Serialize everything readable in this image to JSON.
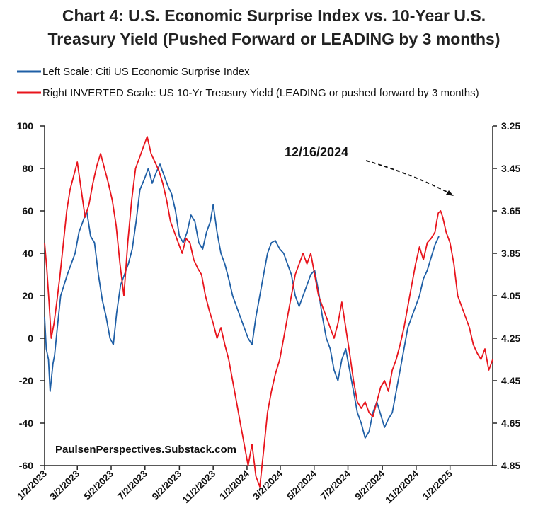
{
  "chart_data": {
    "type": "line",
    "title_line1": "Chart 4: U.S. Economic Surprise Index vs. 10-Year U.S.",
    "title_line2": "Treasury Yield (Pushed Forward or LEADING by 3 months)",
    "legend": [
      {
        "label": "Left Scale: Citi US Economic Surprise Index",
        "color": "#1f5fa6"
      },
      {
        "label": "Right INVERTED Scale: US 10-Yr Treasury Yield (LEADING or pushed forward by 3 months)",
        "color": "#e8141c"
      }
    ],
    "x_axis": {
      "range": [
        "2023-01-02",
        "2025-03-20"
      ],
      "tick_labels": [
        "1/2/2023",
        "3/2/2023",
        "5/2/2023",
        "7/2/2023",
        "9/2/2023",
        "11/2/2023",
        "1/2/2024",
        "3/2/2024",
        "5/2/2024",
        "7/2/2024",
        "9/2/2024",
        "11/2/2024",
        "1/2/2025"
      ]
    },
    "y_left": {
      "range": [
        -60,
        100
      ],
      "ticks": [
        100,
        80,
        60,
        40,
        20,
        0,
        -20,
        -40,
        -60
      ],
      "tick_labels": [
        "100",
        "80",
        "60",
        "40",
        "20",
        "0",
        "-20",
        "-40",
        "-60"
      ]
    },
    "y_right": {
      "inverted": true,
      "range": [
        3.25,
        4.85
      ],
      "ticks": [
        3.25,
        3.45,
        3.65,
        3.85,
        4.05,
        4.25,
        4.45,
        4.65,
        4.85
      ],
      "tick_labels": [
        "3.25",
        "3.45",
        "3.65",
        "3.85",
        "4.05",
        "4.25",
        "4.45",
        "4.65",
        "4.85"
      ]
    },
    "series": [
      {
        "name": "Left Scale: Citi US Economic Surprise Index",
        "axis": "left",
        "color": "#1f5fa6",
        "points": [
          [
            "2023-01-02",
            10
          ],
          [
            "2023-01-05",
            -5
          ],
          [
            "2023-01-09",
            -10
          ],
          [
            "2023-01-12",
            -25
          ],
          [
            "2023-01-17",
            -12
          ],
          [
            "2023-01-20",
            -8
          ],
          [
            "2023-01-25",
            5
          ],
          [
            "2023-01-31",
            20
          ],
          [
            "2023-02-06",
            25
          ],
          [
            "2023-02-12",
            30
          ],
          [
            "2023-02-19",
            35
          ],
          [
            "2023-02-26",
            40
          ],
          [
            "2023-03-05",
            50
          ],
          [
            "2023-03-12",
            55
          ],
          [
            "2023-03-19",
            60
          ],
          [
            "2023-03-26",
            48
          ],
          [
            "2023-04-02",
            45
          ],
          [
            "2023-04-09",
            30
          ],
          [
            "2023-04-16",
            18
          ],
          [
            "2023-04-23",
            10
          ],
          [
            "2023-04-30",
            0
          ],
          [
            "2023-05-06",
            -3
          ],
          [
            "2023-05-12",
            12
          ],
          [
            "2023-05-19",
            25
          ],
          [
            "2023-05-26",
            30
          ],
          [
            "2023-06-02",
            35
          ],
          [
            "2023-06-09",
            42
          ],
          [
            "2023-06-16",
            55
          ],
          [
            "2023-06-23",
            70
          ],
          [
            "2023-07-01",
            75
          ],
          [
            "2023-07-08",
            80
          ],
          [
            "2023-07-15",
            73
          ],
          [
            "2023-07-22",
            78
          ],
          [
            "2023-07-29",
            82
          ],
          [
            "2023-08-05",
            77
          ],
          [
            "2023-08-12",
            72
          ],
          [
            "2023-08-19",
            68
          ],
          [
            "2023-08-26",
            60
          ],
          [
            "2023-09-02",
            48
          ],
          [
            "2023-09-09",
            45
          ],
          [
            "2023-09-16",
            50
          ],
          [
            "2023-09-23",
            58
          ],
          [
            "2023-09-30",
            55
          ],
          [
            "2023-10-07",
            45
          ],
          [
            "2023-10-14",
            42
          ],
          [
            "2023-10-21",
            50
          ],
          [
            "2023-10-28",
            55
          ],
          [
            "2023-11-02",
            63
          ],
          [
            "2023-11-09",
            50
          ],
          [
            "2023-11-16",
            40
          ],
          [
            "2023-11-23",
            35
          ],
          [
            "2023-11-30",
            28
          ],
          [
            "2023-12-07",
            20
          ],
          [
            "2023-12-14",
            15
          ],
          [
            "2023-12-21",
            10
          ],
          [
            "2023-12-28",
            5
          ],
          [
            "2024-01-04",
            0
          ],
          [
            "2024-01-11",
            -3
          ],
          [
            "2024-01-18",
            10
          ],
          [
            "2024-01-25",
            20
          ],
          [
            "2024-02-01",
            30
          ],
          [
            "2024-02-08",
            40
          ],
          [
            "2024-02-15",
            45
          ],
          [
            "2024-02-22",
            46
          ],
          [
            "2024-03-01",
            42
          ],
          [
            "2024-03-08",
            40
          ],
          [
            "2024-03-15",
            35
          ],
          [
            "2024-03-22",
            30
          ],
          [
            "2024-03-29",
            20
          ],
          [
            "2024-04-05",
            15
          ],
          [
            "2024-04-12",
            20
          ],
          [
            "2024-04-19",
            25
          ],
          [
            "2024-04-26",
            30
          ],
          [
            "2024-05-03",
            32
          ],
          [
            "2024-05-10",
            22
          ],
          [
            "2024-05-17",
            10
          ],
          [
            "2024-05-24",
            0
          ],
          [
            "2024-05-31",
            -5
          ],
          [
            "2024-06-07",
            -15
          ],
          [
            "2024-06-14",
            -20
          ],
          [
            "2024-06-21",
            -10
          ],
          [
            "2024-06-28",
            -5
          ],
          [
            "2024-07-05",
            -15
          ],
          [
            "2024-07-12",
            -25
          ],
          [
            "2024-07-19",
            -35
          ],
          [
            "2024-07-26",
            -40
          ],
          [
            "2024-08-02",
            -47
          ],
          [
            "2024-08-09",
            -44
          ],
          [
            "2024-08-16",
            -35
          ],
          [
            "2024-08-23",
            -30
          ],
          [
            "2024-08-30",
            -36
          ],
          [
            "2024-09-06",
            -42
          ],
          [
            "2024-09-13",
            -38
          ],
          [
            "2024-09-20",
            -35
          ],
          [
            "2024-09-27",
            -25
          ],
          [
            "2024-10-04",
            -15
          ],
          [
            "2024-10-11",
            -5
          ],
          [
            "2024-10-18",
            5
          ],
          [
            "2024-10-25",
            10
          ],
          [
            "2024-11-01",
            15
          ],
          [
            "2024-11-08",
            20
          ],
          [
            "2024-11-15",
            28
          ],
          [
            "2024-11-22",
            32
          ],
          [
            "2024-11-29",
            38
          ],
          [
            "2024-12-06",
            44
          ],
          [
            "2024-12-13",
            48
          ]
        ]
      },
      {
        "name": "Right INVERTED Scale: US 10-Yr Treasury Yield (LEADING or pushed forward by 3 months)",
        "axis": "right",
        "color": "#e8141c",
        "points": [
          [
            "2023-01-02",
            3.8
          ],
          [
            "2023-01-06",
            3.92
          ],
          [
            "2023-01-10",
            4.08
          ],
          [
            "2023-01-14",
            4.25
          ],
          [
            "2023-01-19",
            4.18
          ],
          [
            "2023-01-24",
            4.08
          ],
          [
            "2023-01-30",
            3.95
          ],
          [
            "2023-02-05",
            3.8
          ],
          [
            "2023-02-11",
            3.65
          ],
          [
            "2023-02-17",
            3.55
          ],
          [
            "2023-02-24",
            3.48
          ],
          [
            "2023-03-02",
            3.42
          ],
          [
            "2023-03-09",
            3.55
          ],
          [
            "2023-03-16",
            3.68
          ],
          [
            "2023-03-23",
            3.62
          ],
          [
            "2023-03-30",
            3.52
          ],
          [
            "2023-04-06",
            3.44
          ],
          [
            "2023-04-13",
            3.38
          ],
          [
            "2023-04-20",
            3.45
          ],
          [
            "2023-04-27",
            3.52
          ],
          [
            "2023-05-04",
            3.6
          ],
          [
            "2023-05-11",
            3.72
          ],
          [
            "2023-05-18",
            3.9
          ],
          [
            "2023-05-25",
            4.05
          ],
          [
            "2023-06-01",
            3.8
          ],
          [
            "2023-06-08",
            3.6
          ],
          [
            "2023-06-15",
            3.45
          ],
          [
            "2023-06-22",
            3.4
          ],
          [
            "2023-06-29",
            3.35
          ],
          [
            "2023-07-06",
            3.3
          ],
          [
            "2023-07-13",
            3.38
          ],
          [
            "2023-07-20",
            3.42
          ],
          [
            "2023-07-27",
            3.46
          ],
          [
            "2023-08-03",
            3.52
          ],
          [
            "2023-08-10",
            3.6
          ],
          [
            "2023-08-17",
            3.7
          ],
          [
            "2023-08-24",
            3.75
          ],
          [
            "2023-08-31",
            3.8
          ],
          [
            "2023-09-07",
            3.85
          ],
          [
            "2023-09-14",
            3.78
          ],
          [
            "2023-09-21",
            3.8
          ],
          [
            "2023-09-28",
            3.88
          ],
          [
            "2023-10-05",
            3.92
          ],
          [
            "2023-10-12",
            3.95
          ],
          [
            "2023-10-19",
            4.05
          ],
          [
            "2023-10-26",
            4.12
          ],
          [
            "2023-11-02",
            4.18
          ],
          [
            "2023-11-09",
            4.25
          ],
          [
            "2023-11-16",
            4.2
          ],
          [
            "2023-11-23",
            4.28
          ],
          [
            "2023-11-30",
            4.35
          ],
          [
            "2023-12-07",
            4.45
          ],
          [
            "2023-12-14",
            4.55
          ],
          [
            "2023-12-21",
            4.65
          ],
          [
            "2023-12-28",
            4.75
          ],
          [
            "2024-01-04",
            4.85
          ],
          [
            "2024-01-11",
            4.75
          ],
          [
            "2024-01-18",
            4.9
          ],
          [
            "2024-01-25",
            4.95
          ],
          [
            "2024-02-01",
            4.78
          ],
          [
            "2024-02-08",
            4.6
          ],
          [
            "2024-02-15",
            4.5
          ],
          [
            "2024-02-22",
            4.42
          ],
          [
            "2024-03-01",
            4.35
          ],
          [
            "2024-03-08",
            4.25
          ],
          [
            "2024-03-15",
            4.15
          ],
          [
            "2024-03-22",
            4.05
          ],
          [
            "2024-03-29",
            3.95
          ],
          [
            "2024-04-05",
            3.9
          ],
          [
            "2024-04-12",
            3.85
          ],
          [
            "2024-04-19",
            3.9
          ],
          [
            "2024-04-26",
            3.85
          ],
          [
            "2024-05-03",
            3.95
          ],
          [
            "2024-05-10",
            4.05
          ],
          [
            "2024-05-17",
            4.1
          ],
          [
            "2024-05-24",
            4.15
          ],
          [
            "2024-05-31",
            4.2
          ],
          [
            "2024-06-07",
            4.25
          ],
          [
            "2024-06-14",
            4.18
          ],
          [
            "2024-06-21",
            4.08
          ],
          [
            "2024-06-28",
            4.2
          ],
          [
            "2024-07-05",
            4.32
          ],
          [
            "2024-07-12",
            4.45
          ],
          [
            "2024-07-19",
            4.55
          ],
          [
            "2024-07-26",
            4.58
          ],
          [
            "2024-08-02",
            4.55
          ],
          [
            "2024-08-09",
            4.6
          ],
          [
            "2024-08-16",
            4.62
          ],
          [
            "2024-08-23",
            4.55
          ],
          [
            "2024-08-30",
            4.48
          ],
          [
            "2024-09-06",
            4.45
          ],
          [
            "2024-09-13",
            4.5
          ],
          [
            "2024-09-20",
            4.4
          ],
          [
            "2024-09-27",
            4.35
          ],
          [
            "2024-10-04",
            4.28
          ],
          [
            "2024-10-11",
            4.2
          ],
          [
            "2024-10-18",
            4.1
          ],
          [
            "2024-10-25",
            4.0
          ],
          [
            "2024-11-01",
            3.9
          ],
          [
            "2024-11-08",
            3.82
          ],
          [
            "2024-11-15",
            3.88
          ],
          [
            "2024-11-22",
            3.8
          ],
          [
            "2024-11-29",
            3.78
          ],
          [
            "2024-12-06",
            3.75
          ],
          [
            "2024-12-09",
            3.7
          ],
          [
            "2024-12-12",
            3.66
          ],
          [
            "2024-12-16",
            3.65
          ],
          [
            "2024-12-20",
            3.68
          ],
          [
            "2024-12-26",
            3.75
          ],
          [
            "2025-01-02",
            3.8
          ],
          [
            "2025-01-09",
            3.9
          ],
          [
            "2025-01-16",
            4.05
          ],
          [
            "2025-01-23",
            4.1
          ],
          [
            "2025-01-30",
            4.15
          ],
          [
            "2025-02-06",
            4.2
          ],
          [
            "2025-02-13",
            4.28
          ],
          [
            "2025-02-20",
            4.32
          ],
          [
            "2025-02-27",
            4.35
          ],
          [
            "2025-03-06",
            4.3
          ],
          [
            "2025-03-13",
            4.4
          ],
          [
            "2025-03-20",
            4.35
          ]
        ]
      }
    ],
    "annotations": [
      {
        "text": "12/16/2024",
        "arrow_to": [
          "2024-12-16",
          3.65
        ]
      },
      {
        "text": "PaulsenPerspectives.Substack.com"
      }
    ]
  }
}
